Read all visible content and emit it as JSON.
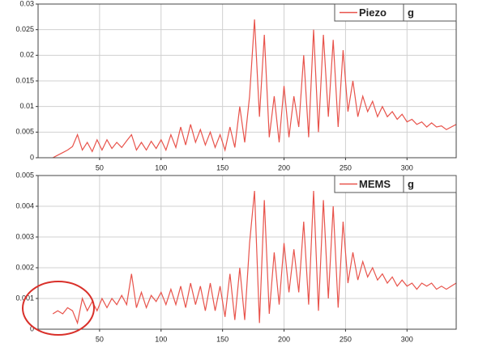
{
  "chart_data": [
    {
      "type": "line",
      "legend": "upper right",
      "unit": "g",
      "grid": true,
      "xlim": [
        0,
        340
      ],
      "xticks": [
        50,
        100,
        150,
        200,
        250,
        300
      ],
      "ylim": [
        0,
        0.03
      ],
      "yticks": [
        0,
        0.005,
        0.01,
        0.015,
        0.02,
        0.025,
        0.03
      ],
      "x": [
        12,
        16,
        20,
        24,
        28,
        32,
        36,
        40,
        44,
        48,
        52,
        56,
        60,
        64,
        68,
        72,
        76,
        80,
        84,
        88,
        92,
        96,
        100,
        104,
        108,
        112,
        116,
        120,
        124,
        128,
        132,
        136,
        140,
        144,
        148,
        152,
        156,
        160,
        164,
        168,
        172,
        176,
        180,
        184,
        188,
        192,
        196,
        200,
        204,
        208,
        212,
        216,
        220,
        224,
        228,
        232,
        236,
        240,
        244,
        248,
        252,
        256,
        260,
        264,
        268,
        272,
        276,
        280,
        284,
        288,
        292,
        296,
        300,
        304,
        308,
        312,
        316,
        320,
        324,
        328,
        332,
        336,
        340
      ],
      "series": [
        {
          "name": "Piezo",
          "color": "#e8534b",
          "values": [
            0,
            0.0005,
            0.001,
            0.0015,
            0.0022,
            0.0045,
            0.0015,
            0.003,
            0.0012,
            0.0035,
            0.0015,
            0.0035,
            0.0018,
            0.003,
            0.002,
            0.0033,
            0.0045,
            0.0015,
            0.003,
            0.0015,
            0.0032,
            0.0018,
            0.0035,
            0.0015,
            0.0045,
            0.002,
            0.006,
            0.0025,
            0.0065,
            0.003,
            0.0055,
            0.0025,
            0.005,
            0.002,
            0.0045,
            0.0015,
            0.006,
            0.002,
            0.01,
            0.003,
            0.012,
            0.027,
            0.008,
            0.024,
            0.004,
            0.012,
            0.003,
            0.014,
            0.004,
            0.012,
            0.006,
            0.02,
            0.004,
            0.025,
            0.005,
            0.024,
            0.008,
            0.023,
            0.006,
            0.021,
            0.009,
            0.015,
            0.008,
            0.012,
            0.009,
            0.011,
            0.008,
            0.01,
            0.008,
            0.009,
            0.0075,
            0.0085,
            0.007,
            0.0075,
            0.0065,
            0.007,
            0.006,
            0.0068,
            0.006,
            0.0062,
            0.0055,
            0.006,
            0.0065
          ]
        }
      ]
    },
    {
      "type": "line",
      "legend": "upper right",
      "unit": "g",
      "grid": true,
      "xlim": [
        0,
        340
      ],
      "xticks": [
        50,
        100,
        150,
        200,
        250,
        300
      ],
      "ylim": [
        0,
        0.005
      ],
      "yticks": [
        0,
        0.001,
        0.002,
        0.003,
        0.004,
        0.005
      ],
      "x": [
        12,
        16,
        20,
        24,
        28,
        32,
        36,
        40,
        44,
        48,
        52,
        56,
        60,
        64,
        68,
        72,
        76,
        80,
        84,
        88,
        92,
        96,
        100,
        104,
        108,
        112,
        116,
        120,
        124,
        128,
        132,
        136,
        140,
        144,
        148,
        152,
        156,
        160,
        164,
        168,
        172,
        176,
        180,
        184,
        188,
        192,
        196,
        200,
        204,
        208,
        212,
        216,
        220,
        224,
        228,
        232,
        236,
        240,
        244,
        248,
        252,
        256,
        260,
        264,
        268,
        272,
        276,
        280,
        284,
        288,
        292,
        296,
        300,
        304,
        308,
        312,
        316,
        320,
        324,
        328,
        332,
        336,
        340
      ],
      "series": [
        {
          "name": "MEMS",
          "color": "#e8534b",
          "values": [
            0.0005,
            0.0006,
            0.0005,
            0.0007,
            0.0006,
            0.0002,
            0.001,
            0.0006,
            0.0009,
            0.0006,
            0.001,
            0.0007,
            0.001,
            0.0008,
            0.0011,
            0.0008,
            0.0018,
            0.0007,
            0.0012,
            0.0007,
            0.0011,
            0.0009,
            0.0012,
            0.0008,
            0.0013,
            0.0008,
            0.0014,
            0.0007,
            0.0015,
            0.0008,
            0.0014,
            0.0006,
            0.0015,
            0.0006,
            0.0014,
            0.0004,
            0.0018,
            0.0003,
            0.002,
            0.0003,
            0.0028,
            0.0045,
            0.0002,
            0.0042,
            0.0005,
            0.0025,
            0.0008,
            0.0028,
            0.0012,
            0.0026,
            0.0012,
            0.0035,
            0.0008,
            0.0045,
            0.0006,
            0.0042,
            0.001,
            0.004,
            0.0007,
            0.0035,
            0.0015,
            0.0025,
            0.0016,
            0.0022,
            0.0017,
            0.002,
            0.0016,
            0.0018,
            0.0015,
            0.0017,
            0.0014,
            0.0016,
            0.0014,
            0.0015,
            0.0013,
            0.0015,
            0.0014,
            0.0015,
            0.0013,
            0.0014,
            0.0013,
            0.0014,
            0.0015
          ]
        }
      ]
    }
  ]
}
